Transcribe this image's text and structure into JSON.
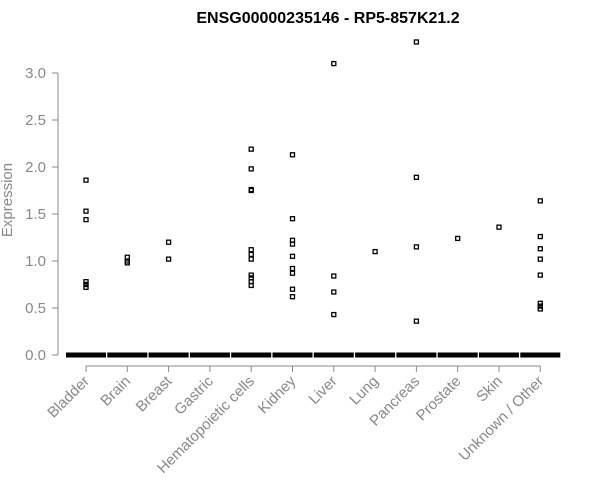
{
  "chart_data": {
    "type": "scatter",
    "title": "ENSG00000235146 - RP5-857K21.2",
    "ylabel": "Expression",
    "xlabel": "",
    "ylim": [
      0,
      3.3
    ],
    "yticks": [
      "0.0",
      "0.5",
      "1.0",
      "1.5",
      "2.0",
      "2.5",
      "3.0"
    ],
    "grid": false,
    "categories": [
      "Bladder",
      "Brain",
      "Breast",
      "Gastric",
      "Hematopoietic cells",
      "Kidney",
      "Liver",
      "Lung",
      "Pancreas",
      "Prostate",
      "Skin",
      "Unknown / Other"
    ],
    "series": [
      {
        "category": "Bladder",
        "zero_cluster": true,
        "values": [
          1.86,
          1.53,
          1.44,
          0.78,
          0.75,
          0.72
        ]
      },
      {
        "category": "Brain",
        "zero_cluster": true,
        "values": [
          1.04,
          1.0,
          0.98
        ]
      },
      {
        "category": "Breast",
        "zero_cluster": true,
        "values": [
          1.2,
          1.02
        ]
      },
      {
        "category": "Gastric",
        "zero_cluster": true,
        "values": []
      },
      {
        "category": "Hematopoietic cells",
        "zero_cluster": true,
        "values": [
          2.19,
          1.98,
          1.76,
          1.75,
          1.12,
          1.07,
          1.02,
          0.85,
          0.82,
          0.78,
          0.74
        ]
      },
      {
        "category": "Kidney",
        "zero_cluster": true,
        "values": [
          2.13,
          1.45,
          1.22,
          1.18,
          1.05,
          0.92,
          0.87,
          0.7,
          0.62
        ]
      },
      {
        "category": "Liver",
        "zero_cluster": true,
        "values": [
          3.1,
          0.84,
          0.67,
          0.43
        ]
      },
      {
        "category": "Lung",
        "zero_cluster": true,
        "values": [
          1.1
        ]
      },
      {
        "category": "Pancreas",
        "zero_cluster": true,
        "values": [
          3.33,
          1.89,
          1.15,
          0.36
        ]
      },
      {
        "category": "Prostate",
        "zero_cluster": true,
        "values": [
          1.24
        ]
      },
      {
        "category": "Skin",
        "zero_cluster": true,
        "values": [
          1.36
        ]
      },
      {
        "category": "Unknown / Other",
        "zero_cluster": true,
        "values": [
          1.64,
          1.26,
          1.13,
          1.02,
          0.85,
          0.55,
          0.52,
          0.49
        ]
      }
    ]
  }
}
